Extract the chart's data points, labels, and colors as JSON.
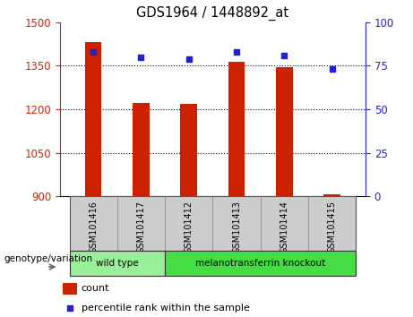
{
  "title": "GDS1964 / 1448892_at",
  "categories": [
    "GSM101416",
    "GSM101417",
    "GSM101412",
    "GSM101413",
    "GSM101414",
    "GSM101415"
  ],
  "bar_values": [
    1432,
    1222,
    1218,
    1365,
    1346,
    908
  ],
  "percentile_values": [
    83,
    80,
    79,
    83,
    81,
    73
  ],
  "bar_color": "#cc2200",
  "percentile_color": "#2222cc",
  "ymin": 900,
  "ymax": 1500,
  "y_ticks": [
    900,
    1050,
    1200,
    1350,
    1500
  ],
  "y2min": 0,
  "y2max": 100,
  "y2_ticks": [
    0,
    25,
    50,
    75,
    100
  ],
  "groups": [
    {
      "label": "wild type",
      "indices": [
        0,
        1
      ],
      "color": "#99ee99"
    },
    {
      "label": "melanotransferrin knockout",
      "indices": [
        2,
        3,
        4,
        5
      ],
      "color": "#44dd44"
    }
  ],
  "group_label": "genotype/variation",
  "legend_count_label": "count",
  "legend_percentile_label": "percentile rank within the sample",
  "bar_width": 0.35,
  "background_color": "#ffffff",
  "plot_bg_color": "#ffffff",
  "tick_label_color_left": "#cc2200",
  "tick_label_color_right": "#2222cc",
  "sample_box_color": "#cccccc",
  "grid_color": "#000000",
  "grid_linestyle": ":"
}
